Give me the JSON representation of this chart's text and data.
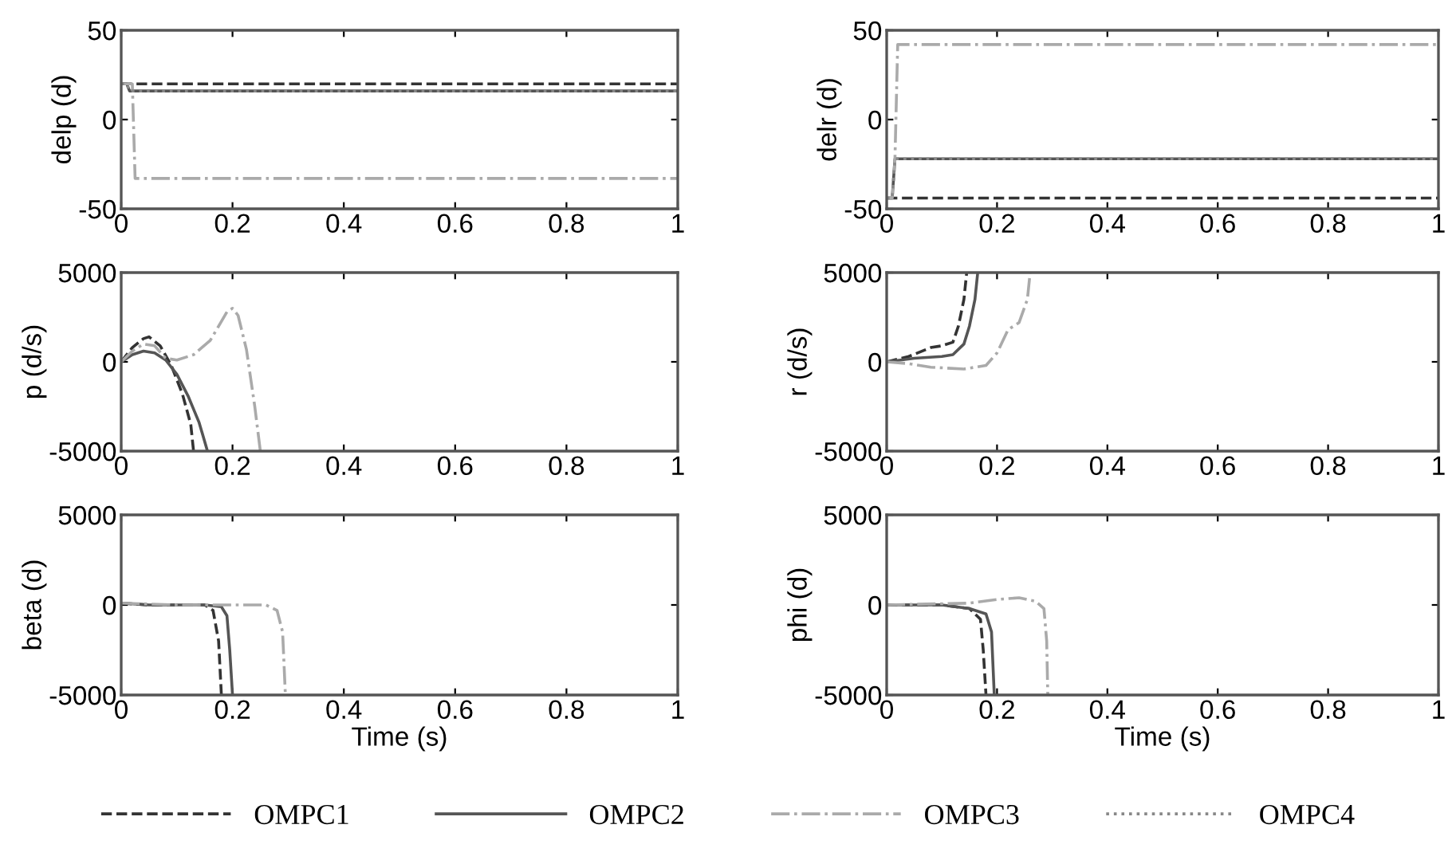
{
  "chart_data": [
    {
      "type": "line",
      "ylabel": "delp (d)",
      "xlim": [
        0,
        1
      ],
      "ylim": [
        -50,
        50
      ],
      "xticks": [
        0,
        0.2,
        0.4,
        0.6,
        0.8,
        1
      ],
      "yticks": [
        -50,
        0,
        50
      ],
      "legend": "bottom",
      "series": [
        {
          "name": "OMPC1",
          "color": "#333333",
          "line_style": "dashed",
          "x": [
            0,
            1
          ],
          "values": [
            20,
            20
          ]
        },
        {
          "name": "OMPC2",
          "color": "#555555",
          "line_style": "solid",
          "x": [
            0,
            0.01,
            0.015,
            1
          ],
          "values": [
            20,
            20,
            16,
            16
          ]
        },
        {
          "name": "OMPC3",
          "color": "#aaaaaa",
          "line_style": "dashdot",
          "x": [
            0,
            0.02,
            0.025,
            1
          ],
          "values": [
            20,
            20,
            -33,
            -33
          ]
        },
        {
          "name": "OMPC4",
          "color": "#888888",
          "line_style": "dotted",
          "x": [
            0,
            0.01,
            0.015,
            1
          ],
          "values": [
            20,
            20,
            16,
            16
          ]
        }
      ]
    },
    {
      "type": "line",
      "ylabel": "delr (d)",
      "xlim": [
        0,
        1
      ],
      "ylim": [
        -50,
        50
      ],
      "xticks": [
        0,
        0.2,
        0.4,
        0.6,
        0.8,
        1
      ],
      "yticks": [
        -50,
        0,
        50
      ],
      "series": [
        {
          "color": "#333333",
          "line_style": "dashed",
          "x": [
            0,
            1
          ],
          "values": [
            -44,
            -44
          ]
        },
        {
          "color": "#555555",
          "line_style": "solid",
          "x": [
            0,
            0.01,
            0.015,
            1
          ],
          "values": [
            -44,
            -44,
            -22,
            -22
          ]
        },
        {
          "color": "#aaaaaa",
          "line_style": "dashdot",
          "x": [
            0,
            0.01,
            0.015,
            0.02,
            1
          ],
          "values": [
            -44,
            -44,
            -22,
            42,
            42
          ]
        },
        {
          "color": "#888888",
          "line_style": "dotted",
          "x": [
            0,
            0.01,
            0.015,
            1
          ],
          "values": [
            -44,
            -44,
            -22,
            -22
          ]
        }
      ]
    },
    {
      "type": "line",
      "ylabel": "p (d/s)",
      "xlim": [
        0,
        1
      ],
      "ylim": [
        -5000,
        5000
      ],
      "xticks": [
        0,
        0.2,
        0.4,
        0.6,
        0.8,
        1
      ],
      "yticks": [
        -5000,
        0,
        5000
      ],
      "series": [
        {
          "color": "#333333",
          "line_style": "dashed",
          "x": [
            0,
            0.02,
            0.04,
            0.05,
            0.07,
            0.09,
            0.11,
            0.125,
            0.13
          ],
          "values": [
            0,
            800,
            1300,
            1400,
            900,
            -200,
            -1800,
            -3500,
            -5000
          ]
        },
        {
          "color": "#555555",
          "line_style": "solid",
          "x": [
            0,
            0.02,
            0.04,
            0.06,
            0.08,
            0.1,
            0.12,
            0.14,
            0.155
          ],
          "values": [
            0,
            400,
            600,
            500,
            100,
            -700,
            -1900,
            -3400,
            -5000
          ]
        },
        {
          "color": "#aaaaaa",
          "line_style": "dashdot",
          "x": [
            0,
            0.02,
            0.04,
            0.06,
            0.08,
            0.1,
            0.13,
            0.16,
            0.19,
            0.2,
            0.21,
            0.225,
            0.24,
            0.25
          ],
          "values": [
            0,
            600,
            1000,
            900,
            200,
            100,
            400,
            1200,
            2800,
            3000,
            2600,
            700,
            -2500,
            -5000
          ]
        }
      ]
    },
    {
      "type": "line",
      "ylabel": "r (d/s)",
      "xlim": [
        0,
        1
      ],
      "ylim": [
        -5000,
        5000
      ],
      "xticks": [
        0,
        0.2,
        0.4,
        0.6,
        0.8,
        1
      ],
      "yticks": [
        -5000,
        0,
        5000
      ],
      "series": [
        {
          "color": "#333333",
          "line_style": "dashed",
          "x": [
            0,
            0.04,
            0.08,
            0.1,
            0.12,
            0.13,
            0.14,
            0.145
          ],
          "values": [
            0,
            300,
            800,
            900,
            1100,
            2000,
            3500,
            5000
          ]
        },
        {
          "color": "#555555",
          "line_style": "solid",
          "x": [
            0,
            0.05,
            0.1,
            0.12,
            0.14,
            0.15,
            0.16,
            0.165
          ],
          "values": [
            0,
            200,
            300,
            400,
            1000,
            2000,
            3500,
            5000
          ]
        },
        {
          "color": "#aaaaaa",
          "line_style": "dashdot",
          "x": [
            0,
            0.04,
            0.08,
            0.14,
            0.18,
            0.2,
            0.22,
            0.24,
            0.255,
            0.26
          ],
          "values": [
            0,
            -100,
            -300,
            -400,
            -200,
            500,
            1800,
            2200,
            3500,
            5000
          ]
        }
      ]
    },
    {
      "type": "line",
      "ylabel": "beta (d)",
      "xlabel": "Time (s)",
      "xlim": [
        0,
        1
      ],
      "ylim": [
        -5000,
        5000
      ],
      "xticks": [
        0,
        0.2,
        0.4,
        0.6,
        0.8,
        1
      ],
      "yticks": [
        -5000,
        0,
        5000
      ],
      "series": [
        {
          "color": "#333333",
          "line_style": "dashed",
          "x": [
            0,
            0.05,
            0.15,
            0.165,
            0.175,
            0.18
          ],
          "values": [
            100,
            0,
            0,
            -300,
            -2000,
            -5000
          ]
        },
        {
          "color": "#555555",
          "line_style": "solid",
          "x": [
            0,
            0.05,
            0.15,
            0.18,
            0.19,
            0.195,
            0.2
          ],
          "values": [
            100,
            0,
            0,
            -100,
            -600,
            -2500,
            -5000
          ]
        },
        {
          "color": "#aaaaaa",
          "line_style": "dashdot",
          "x": [
            0,
            0.1,
            0.26,
            0.28,
            0.29,
            0.295
          ],
          "values": [
            100,
            0,
            0,
            -300,
            -1500,
            -5000
          ]
        }
      ]
    },
    {
      "type": "line",
      "ylabel": "phi (d)",
      "xlabel": "Time (s)",
      "xlim": [
        0,
        1
      ],
      "ylim": [
        -5000,
        5000
      ],
      "xticks": [
        0,
        0.2,
        0.4,
        0.6,
        0.8,
        1
      ],
      "yticks": [
        -5000,
        0,
        5000
      ],
      "series": [
        {
          "color": "#333333",
          "line_style": "dashed",
          "x": [
            0,
            0.1,
            0.15,
            0.17,
            0.175,
            0.18
          ],
          "values": [
            0,
            0,
            -200,
            -800,
            -2500,
            -5000
          ]
        },
        {
          "color": "#555555",
          "line_style": "solid",
          "x": [
            0,
            0.1,
            0.15,
            0.18,
            0.19,
            0.195
          ],
          "values": [
            0,
            0,
            -200,
            -500,
            -1500,
            -5000
          ]
        },
        {
          "color": "#aaaaaa",
          "line_style": "dashdot",
          "x": [
            0,
            0.15,
            0.2,
            0.24,
            0.27,
            0.285,
            0.29,
            0.292
          ],
          "values": [
            0,
            100,
            300,
            400,
            200,
            -200,
            -2000,
            -5000
          ]
        }
      ]
    }
  ]
}
